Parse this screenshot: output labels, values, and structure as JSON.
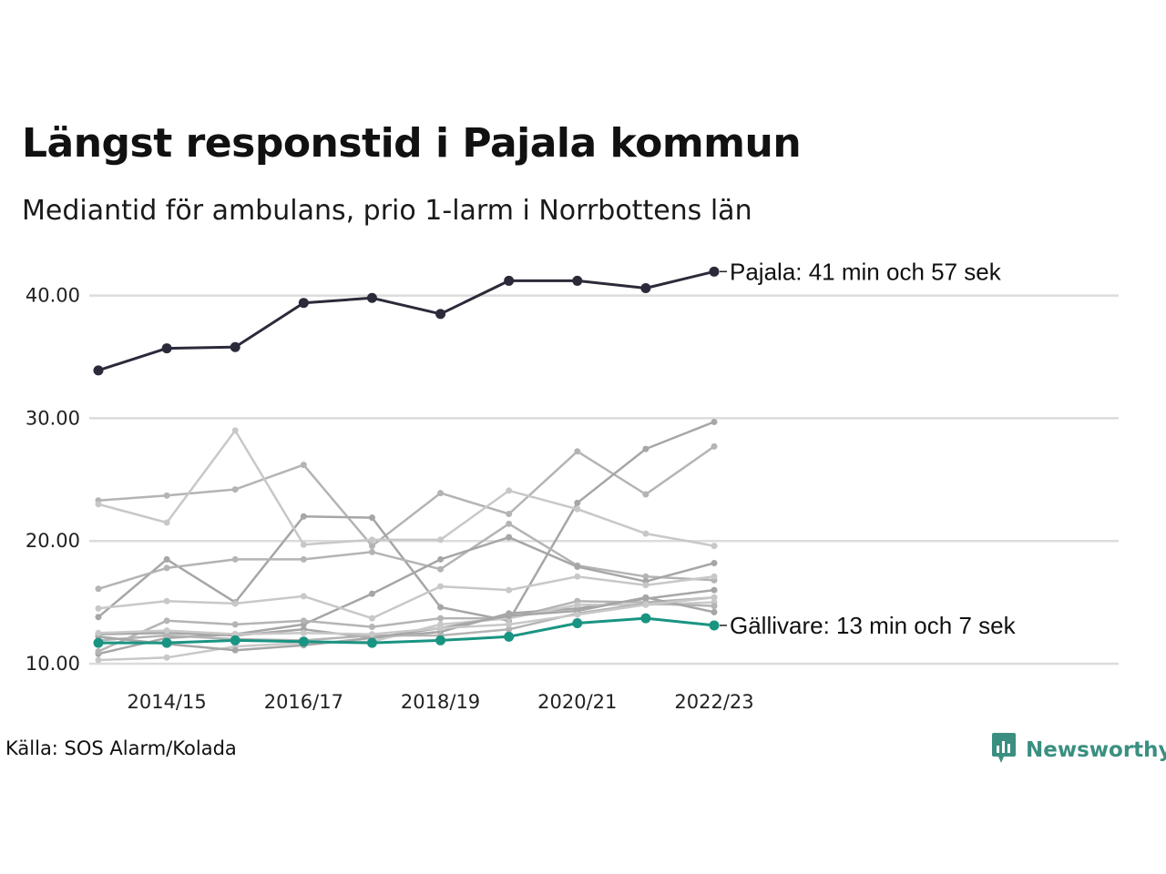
{
  "title": "Längst responstid i Pajala kommun",
  "subtitle": "Mediantid för ambulans, prio 1-larm i Norrbottens län",
  "source": "Källa: SOS Alarm/Kolada",
  "brand": {
    "name": "Newsworthy",
    "icon": "newsworthy-logo-icon",
    "color": "#3a8f80"
  },
  "chart_data": {
    "type": "line",
    "x": [
      "2013/14",
      "2014/15",
      "2015/16",
      "2016/17",
      "2017/18",
      "2018/19",
      "2019/20",
      "2020/21",
      "2021/22",
      "2022/23"
    ],
    "x_tick_labels": [
      "2014/15",
      "2016/17",
      "2018/19",
      "2020/21",
      "2022/23"
    ],
    "y_ticks": [
      "10.00",
      "20.00",
      "30.00",
      "40.00"
    ],
    "ylim": [
      10,
      42
    ],
    "grid": "horizontal",
    "legend": "none",
    "colors": {
      "highlight_high": "#2b2a3a",
      "highlight_low": "#1a9482",
      "background_series": [
        "#b4b4b4",
        "#a6a6a6",
        "#c8c8c8"
      ]
    },
    "series": [
      {
        "name": "Pajala",
        "highlight": "high",
        "values": [
          33.9,
          35.7,
          35.8,
          39.4,
          39.8,
          38.5,
          41.2,
          41.2,
          40.6,
          41.95
        ]
      },
      {
        "name": "Gällivare",
        "highlight": "low",
        "values": [
          11.7,
          11.7,
          11.9,
          11.8,
          11.7,
          11.9,
          12.2,
          13.3,
          13.7,
          13.12
        ]
      },
      {
        "values": [
          23.3,
          23.7,
          24.2,
          26.2,
          19.6,
          23.9,
          22.2,
          27.3,
          23.8,
          27.7
        ]
      },
      {
        "values": [
          13.8,
          18.5,
          15.0,
          22.0,
          21.9,
          14.6,
          13.5,
          23.1,
          27.5,
          29.7
        ]
      },
      {
        "values": [
          23.0,
          21.5,
          29.0,
          19.7,
          20.1,
          20.1,
          24.1,
          22.6,
          20.6,
          19.6
        ]
      },
      {
        "values": [
          16.1,
          17.8,
          18.5,
          18.5,
          19.1,
          17.7,
          21.4,
          18.0,
          17.1,
          16.8
        ]
      },
      {
        "values": [
          10.8,
          12.1,
          12.4,
          13.2,
          15.7,
          18.5,
          20.3,
          17.9,
          16.7,
          18.2
        ]
      },
      {
        "values": [
          14.5,
          15.1,
          14.9,
          15.5,
          13.7,
          16.3,
          16.0,
          17.1,
          16.4,
          17.1
        ]
      },
      {
        "values": [
          11.0,
          13.5,
          13.2,
          13.5,
          13.0,
          13.7,
          13.7,
          15.1,
          15.0,
          15.4
        ]
      },
      {
        "values": [
          12.4,
          12.5,
          12.3,
          12.8,
          12.1,
          12.6,
          14.1,
          14.5,
          15.3,
          16.0
        ]
      },
      {
        "values": [
          10.3,
          10.5,
          11.4,
          11.7,
          11.8,
          13.2,
          13.7,
          14.8,
          14.8,
          15.0
        ]
      },
      {
        "values": [
          11.9,
          12.3,
          12.0,
          11.9,
          12.3,
          12.3,
          12.8,
          14.1,
          14.9,
          14.7
        ]
      },
      {
        "values": [
          12.2,
          11.6,
          11.1,
          11.5,
          12.1,
          12.9,
          13.9,
          14.3,
          15.4,
          14.2
        ]
      },
      {
        "values": [
          12.5,
          12.7,
          12.4,
          12.5,
          12.4,
          12.9,
          13.2,
          14.0,
          14.8,
          15.4
        ]
      }
    ],
    "annotations": [
      {
        "series": "Pajala",
        "text": "Pajala: 41 min och 57 sek"
      },
      {
        "series": "Gällivare",
        "text": "Gällivare: 13 min och 7 sek"
      }
    ]
  }
}
